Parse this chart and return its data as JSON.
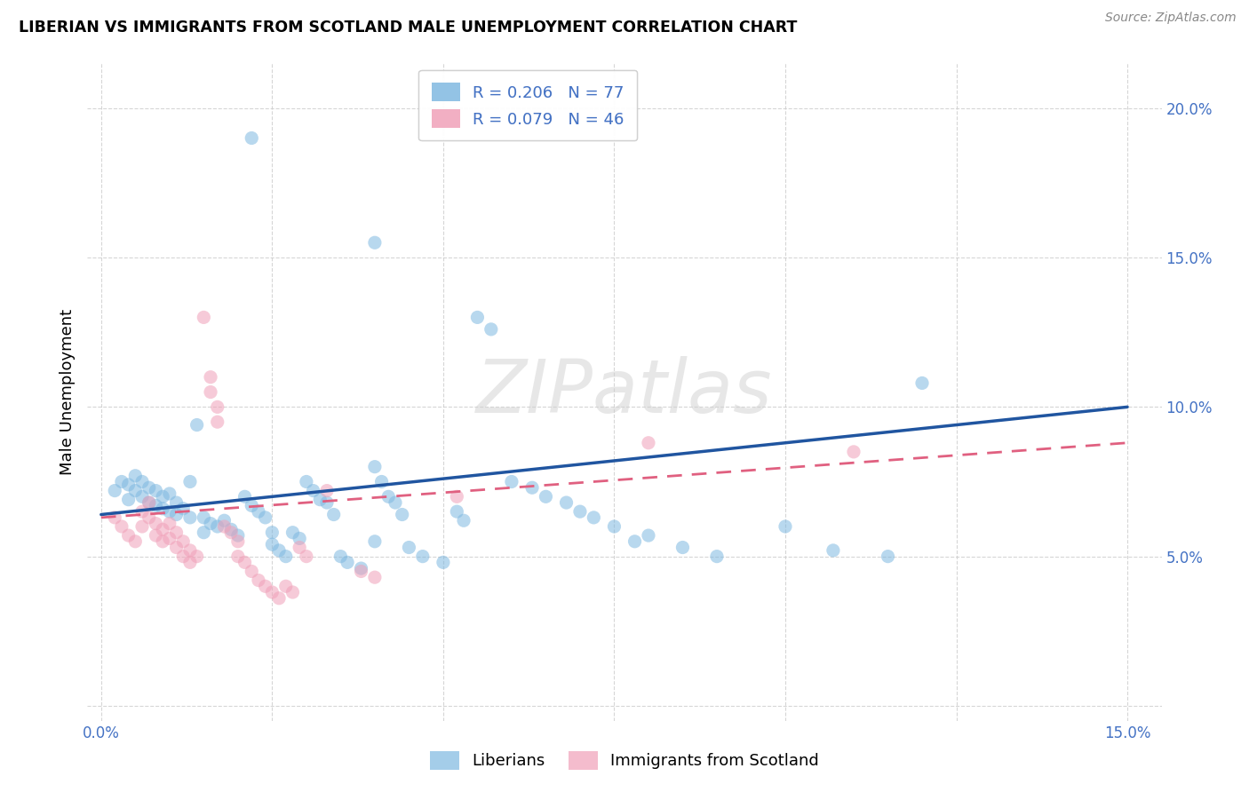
{
  "title": "LIBERIAN VS IMMIGRANTS FROM SCOTLAND MALE UNEMPLOYMENT CORRELATION CHART",
  "source": "Source: ZipAtlas.com",
  "ylabel": "Male Unemployment",
  "watermark": "ZIPatlas",
  "xlim": [
    -0.002,
    0.155
  ],
  "ylim": [
    -0.005,
    0.215
  ],
  "xticks": [
    0.0,
    0.025,
    0.05,
    0.075,
    0.1,
    0.125,
    0.15
  ],
  "yticks": [
    0.0,
    0.05,
    0.1,
    0.15,
    0.2
  ],
  "liberian_color": "#7eb8e0",
  "scotland_color": "#f0a0b8",
  "liberian_line_color": "#2055a0",
  "scotland_line_color": "#e06080",
  "liberian_line_y0": 0.064,
  "liberian_line_y1": 0.1,
  "scotland_line_y0": 0.063,
  "scotland_line_y1": 0.088,
  "liberian_scatter": [
    [
      0.002,
      0.072
    ],
    [
      0.003,
      0.075
    ],
    [
      0.004,
      0.074
    ],
    [
      0.004,
      0.069
    ],
    [
      0.005,
      0.077
    ],
    [
      0.005,
      0.072
    ],
    [
      0.006,
      0.075
    ],
    [
      0.006,
      0.07
    ],
    [
      0.007,
      0.073
    ],
    [
      0.007,
      0.068
    ],
    [
      0.008,
      0.072
    ],
    [
      0.008,
      0.067
    ],
    [
      0.009,
      0.07
    ],
    [
      0.009,
      0.066
    ],
    [
      0.01,
      0.071
    ],
    [
      0.01,
      0.065
    ],
    [
      0.011,
      0.068
    ],
    [
      0.011,
      0.064
    ],
    [
      0.012,
      0.066
    ],
    [
      0.013,
      0.063
    ],
    [
      0.013,
      0.075
    ],
    [
      0.014,
      0.094
    ],
    [
      0.015,
      0.063
    ],
    [
      0.015,
      0.058
    ],
    [
      0.016,
      0.061
    ],
    [
      0.017,
      0.06
    ],
    [
      0.018,
      0.062
    ],
    [
      0.019,
      0.059
    ],
    [
      0.02,
      0.057
    ],
    [
      0.021,
      0.07
    ],
    [
      0.022,
      0.067
    ],
    [
      0.023,
      0.065
    ],
    [
      0.024,
      0.063
    ],
    [
      0.025,
      0.058
    ],
    [
      0.025,
      0.054
    ],
    [
      0.026,
      0.052
    ],
    [
      0.027,
      0.05
    ],
    [
      0.028,
      0.058
    ],
    [
      0.029,
      0.056
    ],
    [
      0.03,
      0.075
    ],
    [
      0.031,
      0.072
    ],
    [
      0.032,
      0.069
    ],
    [
      0.033,
      0.068
    ],
    [
      0.034,
      0.064
    ],
    [
      0.035,
      0.05
    ],
    [
      0.036,
      0.048
    ],
    [
      0.038,
      0.046
    ],
    [
      0.04,
      0.08
    ],
    [
      0.04,
      0.055
    ],
    [
      0.041,
      0.075
    ],
    [
      0.042,
      0.07
    ],
    [
      0.043,
      0.068
    ],
    [
      0.044,
      0.064
    ],
    [
      0.045,
      0.053
    ],
    [
      0.047,
      0.05
    ],
    [
      0.05,
      0.048
    ],
    [
      0.052,
      0.065
    ],
    [
      0.053,
      0.062
    ],
    [
      0.055,
      0.13
    ],
    [
      0.057,
      0.126
    ],
    [
      0.06,
      0.075
    ],
    [
      0.063,
      0.073
    ],
    [
      0.065,
      0.07
    ],
    [
      0.068,
      0.068
    ],
    [
      0.07,
      0.065
    ],
    [
      0.072,
      0.063
    ],
    [
      0.075,
      0.06
    ],
    [
      0.078,
      0.055
    ],
    [
      0.08,
      0.057
    ],
    [
      0.085,
      0.053
    ],
    [
      0.09,
      0.05
    ],
    [
      0.1,
      0.06
    ],
    [
      0.107,
      0.052
    ],
    [
      0.115,
      0.05
    ],
    [
      0.12,
      0.108
    ],
    [
      0.022,
      0.19
    ],
    [
      0.04,
      0.155
    ]
  ],
  "scotland_scatter": [
    [
      0.002,
      0.063
    ],
    [
      0.003,
      0.06
    ],
    [
      0.004,
      0.057
    ],
    [
      0.005,
      0.055
    ],
    [
      0.006,
      0.065
    ],
    [
      0.006,
      0.06
    ],
    [
      0.007,
      0.068
    ],
    [
      0.007,
      0.063
    ],
    [
      0.008,
      0.061
    ],
    [
      0.008,
      0.057
    ],
    [
      0.009,
      0.059
    ],
    [
      0.009,
      0.055
    ],
    [
      0.01,
      0.061
    ],
    [
      0.01,
      0.056
    ],
    [
      0.011,
      0.058
    ],
    [
      0.011,
      0.053
    ],
    [
      0.012,
      0.055
    ],
    [
      0.012,
      0.05
    ],
    [
      0.013,
      0.052
    ],
    [
      0.013,
      0.048
    ],
    [
      0.014,
      0.05
    ],
    [
      0.015,
      0.13
    ],
    [
      0.016,
      0.11
    ],
    [
      0.016,
      0.105
    ],
    [
      0.017,
      0.1
    ],
    [
      0.017,
      0.095
    ],
    [
      0.018,
      0.06
    ],
    [
      0.019,
      0.058
    ],
    [
      0.02,
      0.055
    ],
    [
      0.02,
      0.05
    ],
    [
      0.021,
      0.048
    ],
    [
      0.022,
      0.045
    ],
    [
      0.023,
      0.042
    ],
    [
      0.024,
      0.04
    ],
    [
      0.025,
      0.038
    ],
    [
      0.026,
      0.036
    ],
    [
      0.027,
      0.04
    ],
    [
      0.028,
      0.038
    ],
    [
      0.029,
      0.053
    ],
    [
      0.03,
      0.05
    ],
    [
      0.033,
      0.072
    ],
    [
      0.038,
      0.045
    ],
    [
      0.04,
      0.043
    ],
    [
      0.052,
      0.07
    ],
    [
      0.08,
      0.088
    ],
    [
      0.11,
      0.085
    ]
  ]
}
